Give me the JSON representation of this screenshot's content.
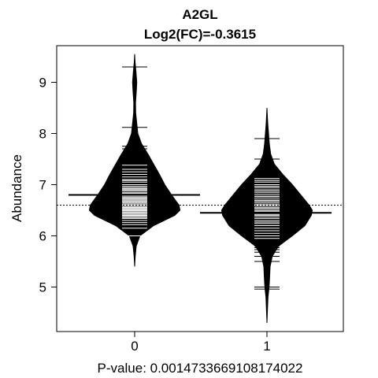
{
  "chart_data": {
    "type": "beanplot",
    "title": "A2GL",
    "subtitle": "Log2(FC)=-0.3615",
    "xlabel": "P-value: 0.00147336691081740​22",
    "ylabel": "Abundance",
    "categories": [
      "0",
      "1"
    ],
    "ylim": [
      4.2,
      9.55
    ],
    "yticks": [
      5,
      6,
      7,
      8,
      9
    ],
    "ytick_labels": [
      "5",
      "6",
      "7",
      "8",
      "9"
    ],
    "overall_mean": 6.6,
    "group_means": [
      6.8,
      6.45
    ],
    "colors": {
      "bean": "#000000",
      "lines": "#ffffff",
      "background": "#ffffff"
    },
    "series": [
      {
        "density": [
          [
            5.4,
            0.0
          ],
          [
            5.6,
            0.01
          ],
          [
            5.8,
            0.03
          ],
          [
            6.0,
            0.1
          ],
          [
            6.2,
            0.36
          ],
          [
            6.4,
            0.76
          ],
          [
            6.5,
            0.86
          ],
          [
            6.6,
            0.84
          ],
          [
            6.8,
            0.7
          ],
          [
            7.0,
            0.57
          ],
          [
            7.2,
            0.47
          ],
          [
            7.4,
            0.36
          ],
          [
            7.6,
            0.25
          ],
          [
            7.8,
            0.13
          ],
          [
            8.0,
            0.06
          ],
          [
            8.2,
            0.04
          ],
          [
            8.4,
            0.02
          ],
          [
            8.6,
            0.017
          ],
          [
            8.8,
            0.03
          ],
          [
            9.0,
            0.04
          ],
          [
            9.2,
            0.025
          ],
          [
            9.4,
            0.008
          ],
          [
            9.55,
            0.0
          ]
        ],
        "points": [
          9.3,
          8.12,
          7.75,
          7.7,
          7.62,
          7.56,
          7.5,
          7.45,
          7.42,
          7.38,
          7.3,
          7.25,
          7.2,
          7.15,
          7.1,
          7.08,
          7.05,
          7.0,
          6.97,
          6.94,
          6.92,
          6.9,
          6.88,
          6.85,
          6.83,
          6.8,
          6.78,
          6.76,
          6.74,
          6.72,
          6.7,
          6.68,
          6.66,
          6.64,
          6.62,
          6.6,
          6.58,
          6.56,
          6.55,
          6.53,
          6.52,
          6.5,
          6.49,
          6.47,
          6.45,
          6.44,
          6.42,
          6.4,
          6.38,
          6.36,
          6.34,
          6.3,
          6.26,
          6.22,
          6.15,
          6.0
        ]
      },
      {
        "density": [
          [
            4.3,
            0.0
          ],
          [
            4.5,
            0.008
          ],
          [
            4.8,
            0.02
          ],
          [
            5.0,
            0.04
          ],
          [
            5.2,
            0.05
          ],
          [
            5.4,
            0.06
          ],
          [
            5.6,
            0.1
          ],
          [
            5.8,
            0.22
          ],
          [
            6.0,
            0.48
          ],
          [
            6.2,
            0.72
          ],
          [
            6.4,
            0.84
          ],
          [
            6.5,
            0.86
          ],
          [
            6.6,
            0.8
          ],
          [
            6.8,
            0.64
          ],
          [
            7.0,
            0.48
          ],
          [
            7.2,
            0.3
          ],
          [
            7.4,
            0.14
          ],
          [
            7.6,
            0.07
          ],
          [
            7.8,
            0.045
          ],
          [
            8.0,
            0.03
          ],
          [
            8.2,
            0.015
          ],
          [
            8.5,
            0.0
          ]
        ],
        "points": [
          7.9,
          7.5,
          7.12,
          7.08,
          7.05,
          7.0,
          6.97,
          6.94,
          6.9,
          6.87,
          6.84,
          6.8,
          6.77,
          6.74,
          6.7,
          6.68,
          6.65,
          6.62,
          6.6,
          6.58,
          6.55,
          6.53,
          6.5,
          6.48,
          6.45,
          6.42,
          6.4,
          6.37,
          6.34,
          6.3,
          6.27,
          6.24,
          6.2,
          6.15,
          6.1,
          6.05,
          6.0,
          5.95,
          5.9,
          5.85,
          5.8,
          5.77,
          5.73,
          5.68,
          5.6,
          5.5,
          5.0,
          4.96
        ]
      }
    ]
  }
}
